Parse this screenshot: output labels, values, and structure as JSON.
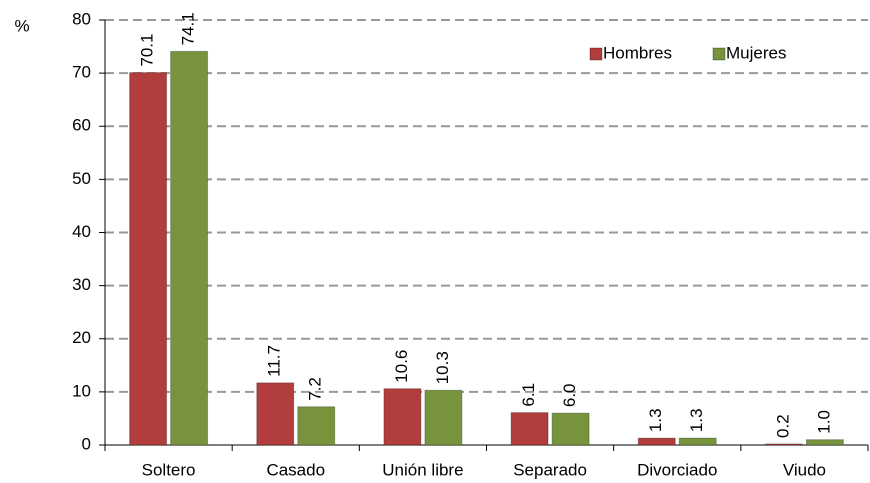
{
  "chart_data": {
    "type": "bar",
    "ylabel": "%",
    "categories": [
      "Soltero",
      "Casado",
      "Unión libre",
      "Separado",
      "Divorciado",
      "Viudo"
    ],
    "series": [
      {
        "name": "Hombres",
        "color": "#b13d3d",
        "values": [
          70.1,
          11.7,
          10.6,
          6.1,
          1.3,
          0.2
        ],
        "value_labels": [
          "70.1",
          "11.7",
          "10.6",
          "6.1",
          "1.3",
          "0.2"
        ]
      },
      {
        "name": "Mujeres",
        "color": "#77933c",
        "values": [
          74.1,
          7.2,
          10.3,
          6.0,
          1.3,
          1.0
        ],
        "value_labels": [
          "74.1",
          "7.2",
          "10.3",
          "6.0",
          "1.3",
          "1.0"
        ]
      }
    ],
    "ylim": [
      0,
      80
    ],
    "yticks": [
      0,
      10,
      20,
      30,
      40,
      50,
      60,
      70,
      80
    ],
    "grid": true,
    "legend": "top-right"
  }
}
